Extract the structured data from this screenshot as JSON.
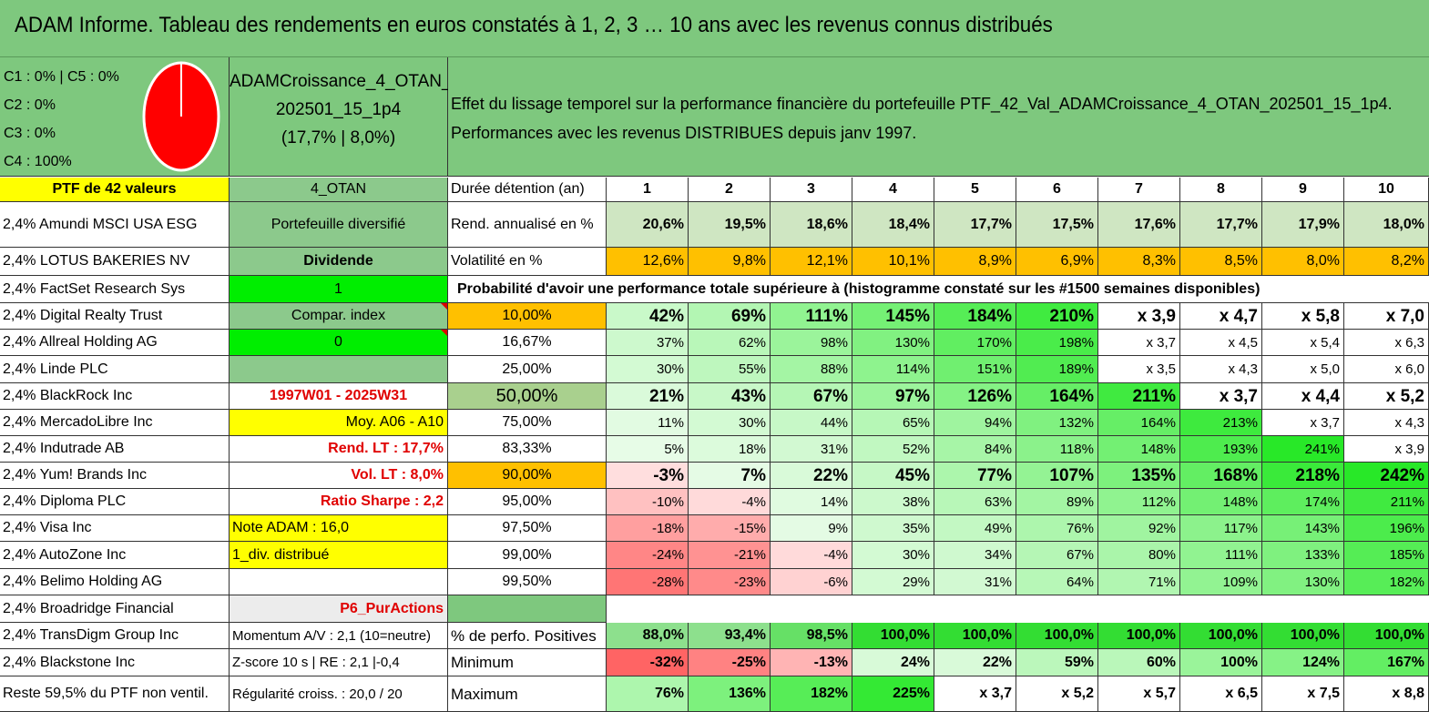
{
  "title": "ADAM Informe. Tableau des rendements en euros constatés à 1, 2, 3 … 10 ans avec les revenus connus distribués",
  "pie": {
    "labels": [
      "C1 : 0% | C5 : 0%",
      "C2 : 0%",
      "C3 : 0%",
      "C4 : 100%"
    ],
    "color": "#ff0000"
  },
  "portfolio": {
    "name_line1": "ADAMCroissance_4_OTAN_",
    "name_line2": "202501_15_1p4",
    "name_line3": "(17,7% | 8,0%)"
  },
  "description": {
    "line1": "Effet du lissage temporel sur la performance financière du portefeuille PTF_42_Val_ADAMCroissance_4_OTAN_202501_15_1p4.",
    "line2": "Performances avec les revenus DISTRIBUES depuis janv 1997."
  },
  "holdings_header": "PTF de 42 valeurs",
  "holdings": [
    "2,4% Amundi MSCI USA ESG",
    "2,4% LOTUS BAKERIES NV",
    "2,4% FactSet Research Sys",
    "2,4% Digital Realty Trust",
    "2,4% Allreal Holding AG",
    "2,4% Linde PLC",
    "2,4% BlackRock Inc",
    "2,4% MercadoLibre Inc",
    "2,4% Indutrade AB",
    "2,4% Yum! Brands Inc",
    "2,4% Diploma PLC",
    "2,4% Visa Inc",
    "2,4% AutoZone Inc",
    "2,4% Belimo Holding AG",
    "2,4% Broadridge Financial",
    "2,4% TransDigm Group Inc",
    "2,4% Blackstone Inc",
    "Reste 59,5% du PTF non ventil."
  ],
  "info": [
    "4_OTAN",
    "Portefeuille diversifié",
    "Dividende",
    "1",
    "Compar. index",
    "0",
    "",
    "1997W01 - 2025W31",
    "Moy. A06 - A10",
    "Rend. LT : 17,7%",
    "Vol. LT : 8,0%",
    "Ratio Sharpe : 2,2",
    "Note ADAM : 16,0",
    "1_div. distribué",
    "",
    "P6_PurActions",
    "Momentum A/V : 2,1 (10=neutre)",
    "Z-score 10 s | RE : 2,1 |-0,4",
    "Régularité croiss. : 20,0 / 20"
  ],
  "duration_label": "Durée détention (an)",
  "years": [
    "1",
    "2",
    "3",
    "4",
    "5",
    "6",
    "7",
    "8",
    "9",
    "10"
  ],
  "rend_label": "Rend. annualisé en %",
  "rend": [
    "20,6%",
    "19,5%",
    "18,6%",
    "18,4%",
    "17,7%",
    "17,5%",
    "17,6%",
    "17,7%",
    "17,9%",
    "18,0%"
  ],
  "vol_label": "Volatilité en %",
  "vol": [
    "12,6%",
    "9,8%",
    "12,1%",
    "10,1%",
    "8,9%",
    "6,9%",
    "8,3%",
    "8,5%",
    "8,0%",
    "8,2%"
  ],
  "prob_title": "Probabilité d'avoir une performance totale supérieure à (histogramme constaté sur les #1500 semaines disponibles)",
  "prob_rows": [
    {
      "p": "10,00%",
      "v": [
        "42%",
        "69%",
        "111%",
        "145%",
        "184%",
        "210%",
        "x 3,9",
        "x 4,7",
        "x 5,8",
        "x 7,0"
      ]
    },
    {
      "p": "16,67%",
      "v": [
        "37%",
        "62%",
        "98%",
        "130%",
        "170%",
        "198%",
        "x 3,7",
        "x 4,5",
        "x 5,4",
        "x 6,3"
      ]
    },
    {
      "p": "25,00%",
      "v": [
        "30%",
        "55%",
        "88%",
        "114%",
        "151%",
        "189%",
        "x 3,5",
        "x 4,3",
        "x 5,0",
        "x 6,0"
      ]
    },
    {
      "p": "50,00%",
      "v": [
        "21%",
        "43%",
        "67%",
        "97%",
        "126%",
        "164%",
        "211%",
        "x 3,7",
        "x 4,4",
        "x 5,2"
      ]
    },
    {
      "p": "75,00%",
      "v": [
        "11%",
        "30%",
        "44%",
        "65%",
        "94%",
        "132%",
        "164%",
        "213%",
        "x 3,7",
        "x 4,3"
      ]
    },
    {
      "p": "83,33%",
      "v": [
        "5%",
        "18%",
        "31%",
        "52%",
        "84%",
        "118%",
        "148%",
        "193%",
        "241%",
        "x 3,9"
      ]
    },
    {
      "p": "90,00%",
      "v": [
        "-3%",
        "7%",
        "22%",
        "45%",
        "77%",
        "107%",
        "135%",
        "168%",
        "218%",
        "242%"
      ]
    },
    {
      "p": "95,00%",
      "v": [
        "-10%",
        "-4%",
        "14%",
        "38%",
        "63%",
        "89%",
        "112%",
        "148%",
        "174%",
        "211%"
      ]
    },
    {
      "p": "97,50%",
      "v": [
        "-18%",
        "-15%",
        "9%",
        "35%",
        "49%",
        "76%",
        "92%",
        "117%",
        "143%",
        "196%"
      ]
    },
    {
      "p": "99,00%",
      "v": [
        "-24%",
        "-21%",
        "-4%",
        "30%",
        "34%",
        "67%",
        "80%",
        "111%",
        "133%",
        "185%"
      ]
    },
    {
      "p": "99,50%",
      "v": [
        "-28%",
        "-23%",
        "-6%",
        "29%",
        "31%",
        "64%",
        "71%",
        "109%",
        "130%",
        "182%"
      ]
    }
  ],
  "pos_label": "% de perfo. Positives",
  "pos": [
    "88,0%",
    "93,4%",
    "98,5%",
    "100,0%",
    "100,0%",
    "100,0%",
    "100,0%",
    "100,0%",
    "100,0%",
    "100,0%"
  ],
  "min_label": "Minimum",
  "min": [
    "-32%",
    "-25%",
    "-13%",
    "24%",
    "22%",
    "59%",
    "60%",
    "100%",
    "124%",
    "167%"
  ],
  "max_label": "Maximum",
  "max": [
    "76%",
    "136%",
    "182%",
    "225%",
    "x 3,7",
    "x 5,2",
    "x 5,7",
    "x 6,5",
    "x 7,5",
    "x 8,8"
  ]
}
